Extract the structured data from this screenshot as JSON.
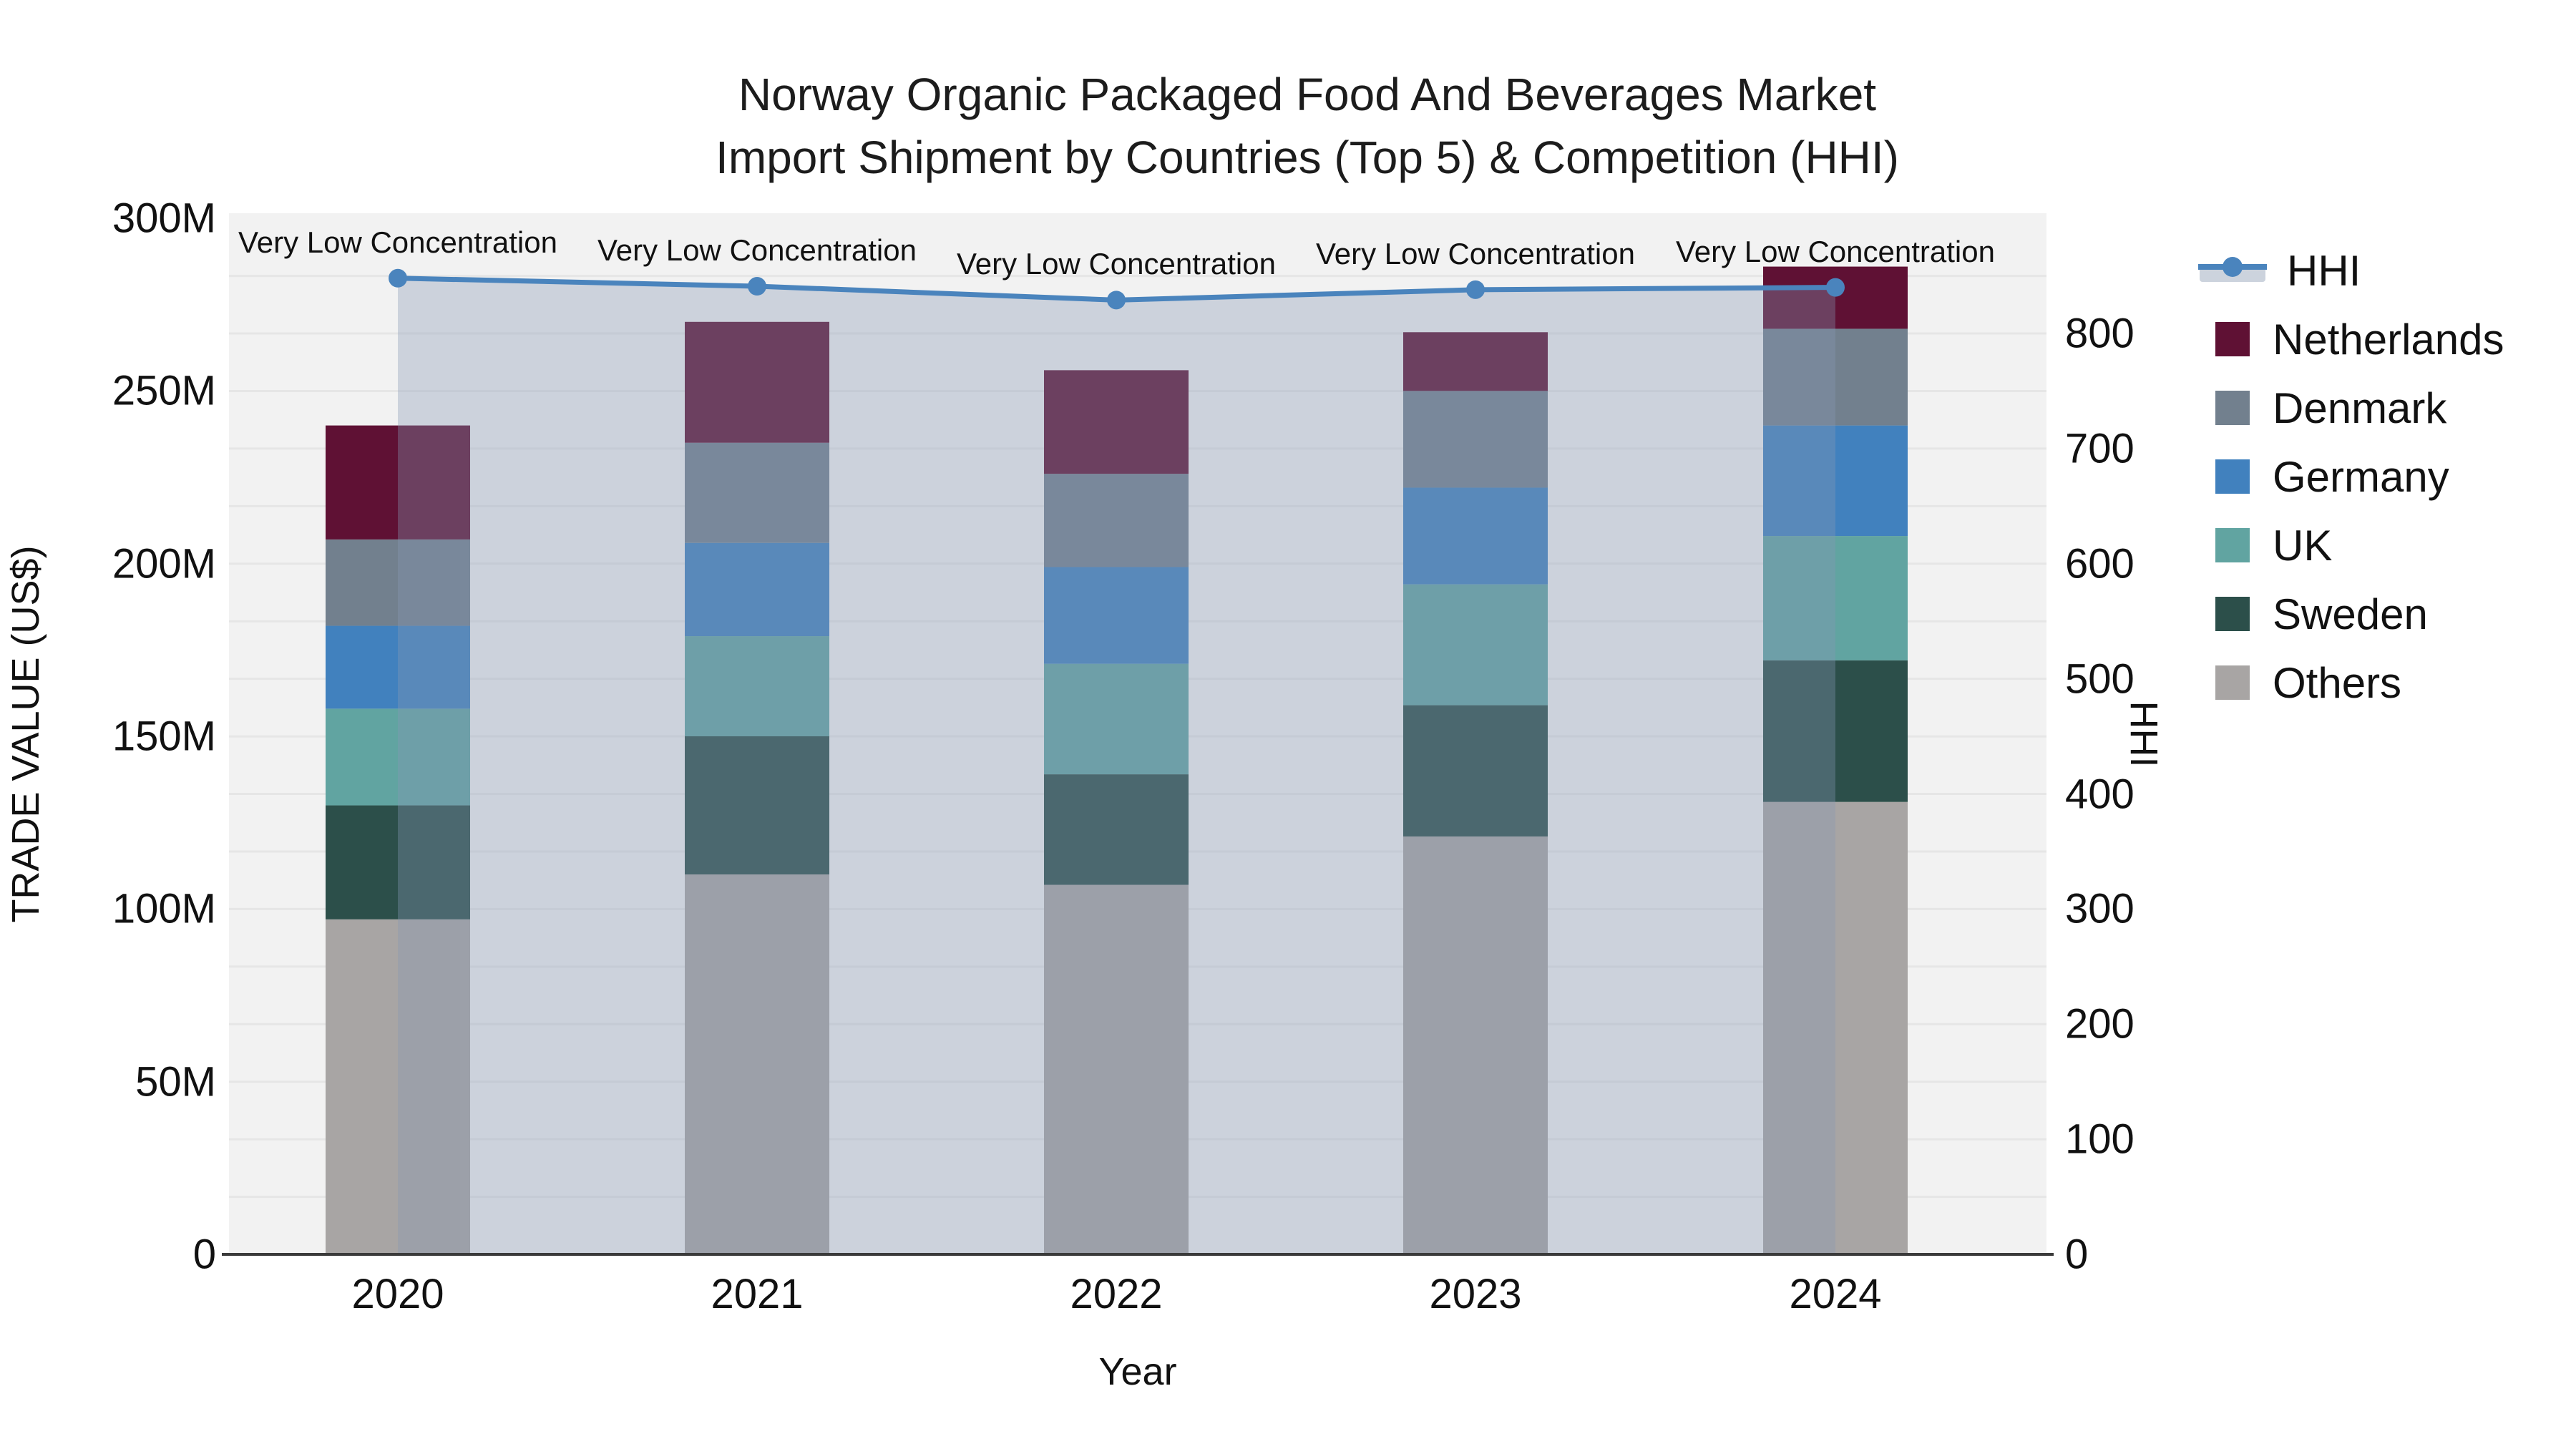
{
  "title": {
    "line1": "Norway Organic Packaged Food And Beverages Market",
    "line2": "Import Shipment by Countries (Top 5) & Competition (HHI)"
  },
  "axes": {
    "x_label": "Year",
    "y_left_label": "TRADE VALUE (US$)",
    "y_right_label": "HHI",
    "y_left_ticks": [
      "0",
      "50M",
      "100M",
      "150M",
      "200M",
      "250M",
      "300M"
    ],
    "y_left_tick_values": [
      0,
      50,
      100,
      150,
      200,
      250,
      300
    ],
    "y_right_ticks": [
      "0",
      "100",
      "200",
      "300",
      "400",
      "500",
      "600",
      "700",
      "800"
    ],
    "y_right_tick_values": [
      0,
      100,
      200,
      300,
      400,
      500,
      600,
      700,
      800
    ]
  },
  "chart_data": {
    "type": "bar",
    "subtype": "stacked-bars-with-line-overlay",
    "title": "Norway Organic Packaged Food And Beverages Market Import Shipment by Countries (Top 5) & Competition (HHI)",
    "xlabel": "Year",
    "ylabel": "TRADE VALUE (US$)",
    "y2label": "HHI",
    "ylim": [
      0,
      300
    ],
    "ylim_unit": "million US$",
    "y2lim": [
      0,
      900
    ],
    "grid": "horizontal, every 50 HHI units",
    "legend_position": "right, outside plot",
    "categories": [
      "2020",
      "2021",
      "2022",
      "2023",
      "2024"
    ],
    "stack_order_bottom_to_top": [
      "Others",
      "Sweden",
      "UK",
      "Germany",
      "Denmark",
      "Netherlands"
    ],
    "series": [
      {
        "name": "Others",
        "color": "#a8a5a4",
        "values_musd": [
          97,
          110,
          107,
          121,
          131
        ]
      },
      {
        "name": "Sweden",
        "color": "#2c4f4a",
        "values_musd": [
          33,
          40,
          32,
          38,
          41
        ]
      },
      {
        "name": "UK",
        "color": "#61a4a1",
        "values_musd": [
          28,
          29,
          32,
          35,
          36
        ]
      },
      {
        "name": "Germany",
        "color": "#4181be",
        "values_musd": [
          24,
          27,
          28,
          28,
          32
        ]
      },
      {
        "name": "Denmark",
        "color": "#72808e",
        "values_musd": [
          25,
          29,
          27,
          28,
          28
        ]
      },
      {
        "name": "Netherlands",
        "color": "#5f1134",
        "values_musd": [
          33,
          35,
          30,
          17,
          18
        ]
      }
    ],
    "bar_totals_musd": [
      240,
      270,
      256,
      267,
      286
    ],
    "line_series": {
      "name": "HHI",
      "color": "#4a84bd",
      "band_color": "rgba(134,151,180,0.35)",
      "values": [
        848,
        841,
        829,
        838,
        840
      ]
    },
    "annotation_text": "Very Low Concentration",
    "annotations_per_point": [
      "Very Low Concentration",
      "Very Low Concentration",
      "Very Low Concentration",
      "Very Low Concentration",
      "Very Low Concentration"
    ]
  },
  "legend": {
    "items": [
      {
        "label": "HHI",
        "type": "line",
        "color": "#4a84bd",
        "band_color": "#ccd3dd"
      },
      {
        "label": "Netherlands",
        "type": "square",
        "color": "#5f1134"
      },
      {
        "label": "Denmark",
        "type": "square",
        "color": "#72808e"
      },
      {
        "label": "Germany",
        "type": "square",
        "color": "#4181be"
      },
      {
        "label": "UK",
        "type": "square",
        "color": "#61a4a1"
      },
      {
        "label": "Sweden",
        "type": "square",
        "color": "#2c4f4a"
      },
      {
        "label": "Others",
        "type": "square",
        "color": "#a8a5a4"
      }
    ]
  },
  "style": {
    "plot_bg": "#f2f2f2",
    "grid_color": "#e6e6e6",
    "axis_line_color": "#3a3a3a",
    "text_color": "#111111"
  }
}
